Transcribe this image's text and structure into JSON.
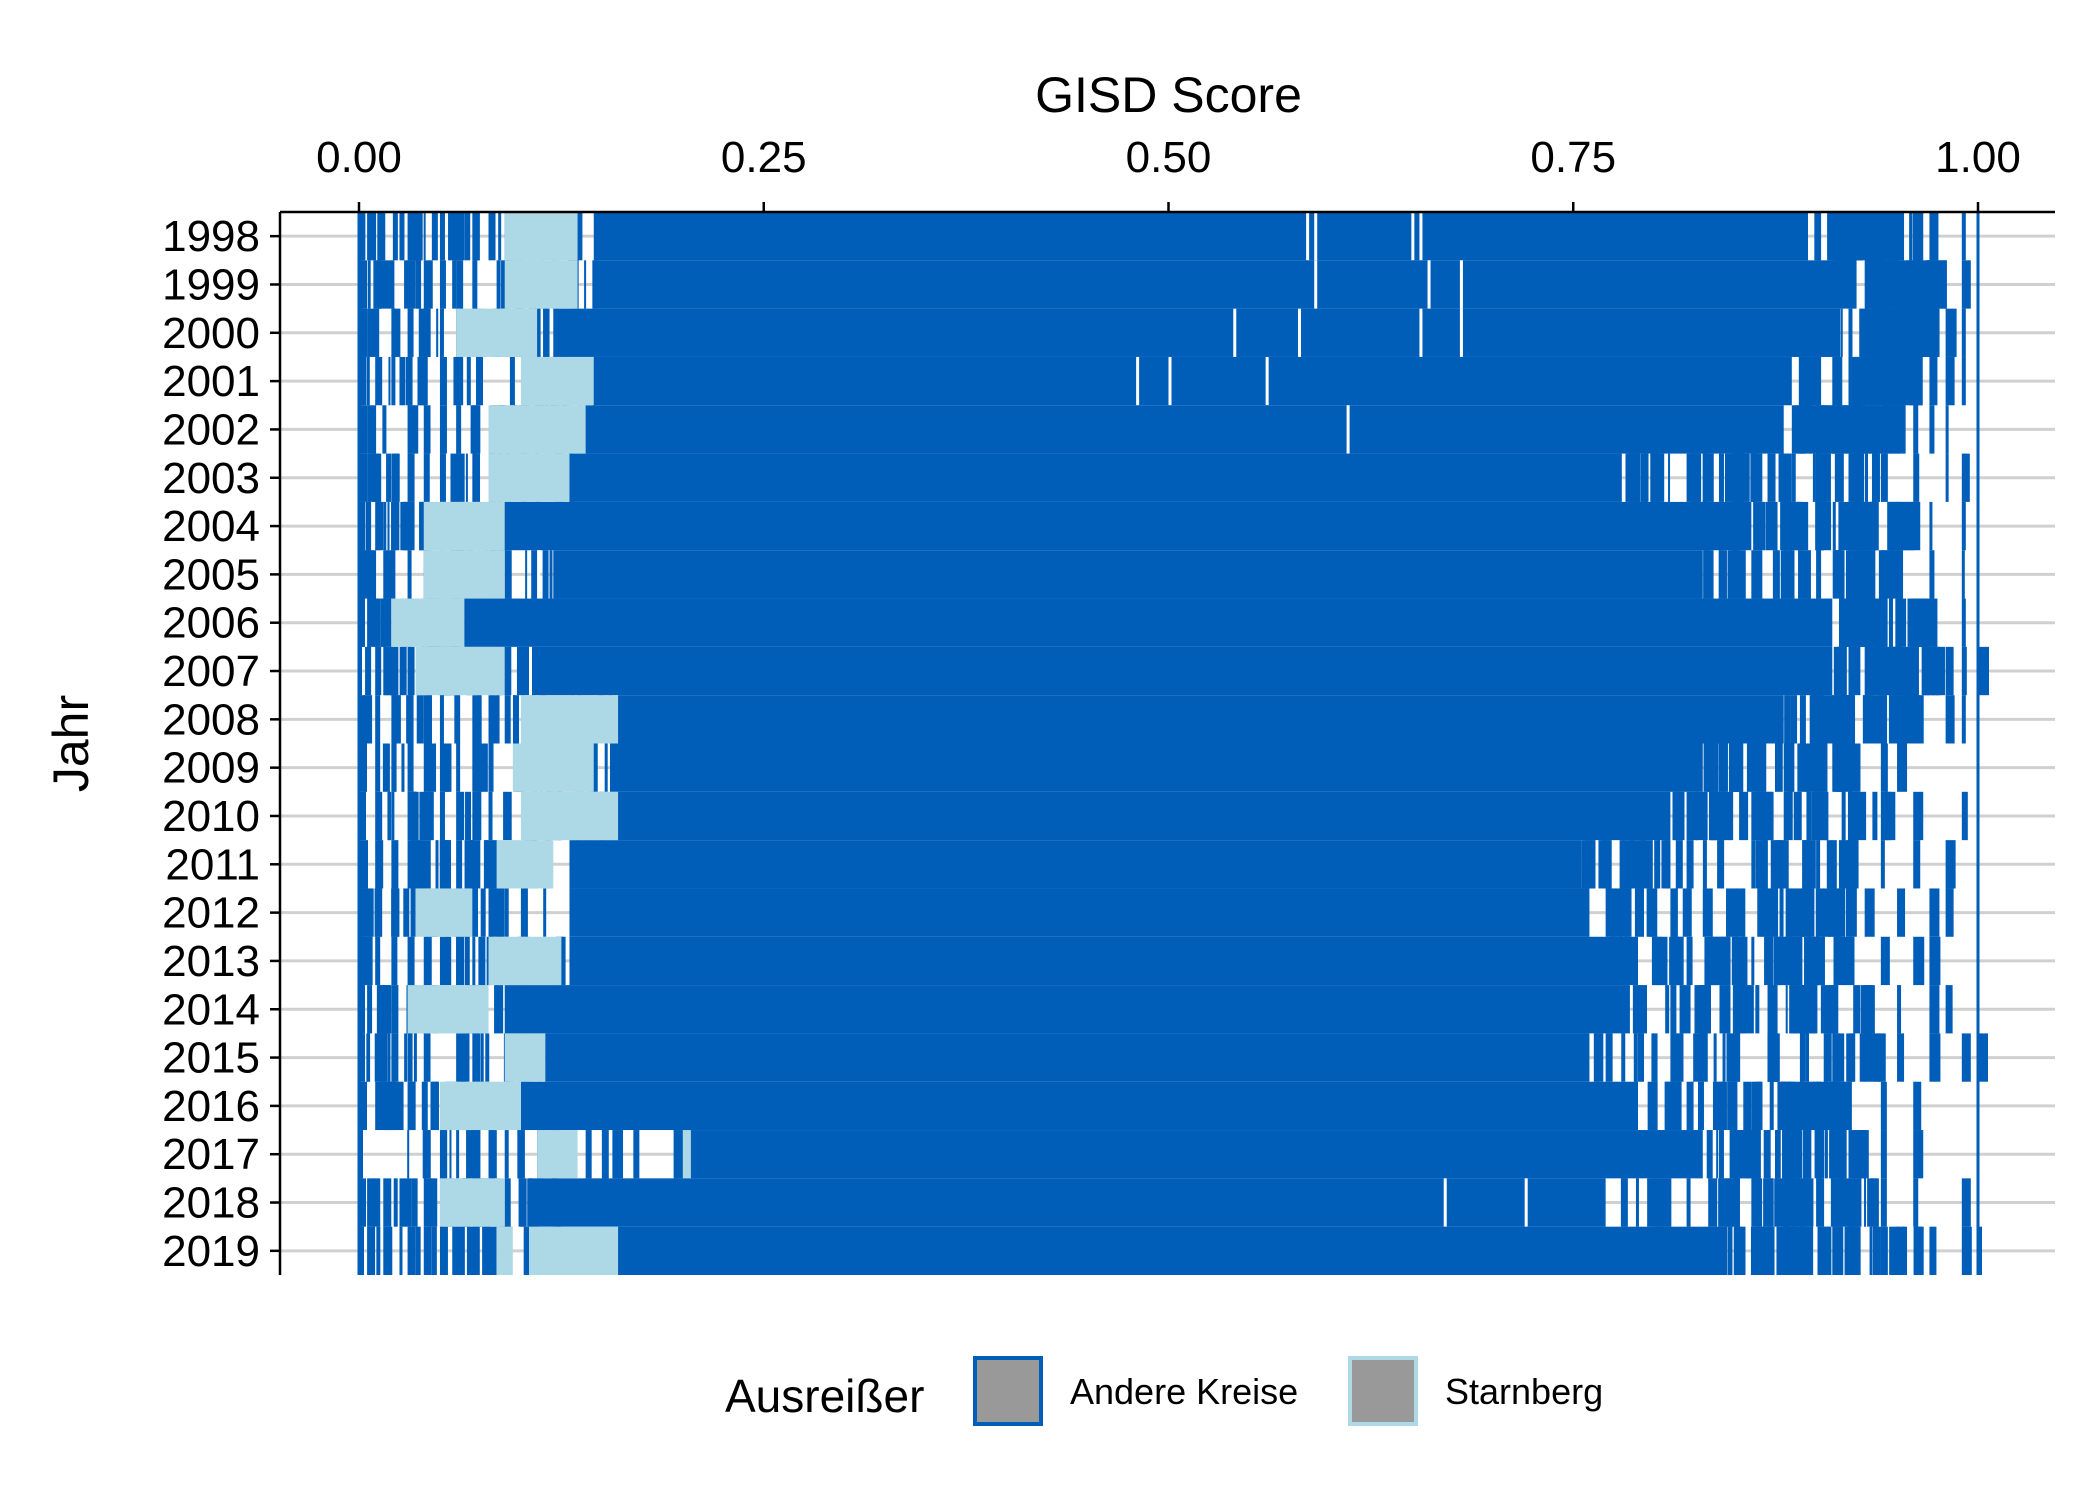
{
  "chart_data": {
    "type": "bar",
    "description_of_marks": "vertical segment lines per district GISD score",
    "xlabel": "GISD Score",
    "ylabel": "Jahr",
    "xlim": [
      -0.04,
      1.04
    ],
    "xticks": [
      "0.00",
      "0.25",
      "0.50",
      "0.75",
      "1.00"
    ],
    "xtick_values": [
      0,
      0.25,
      0.5,
      0.75,
      1.0
    ],
    "categories": [
      "1998",
      "1999",
      "2000",
      "2001",
      "2002",
      "2003",
      "2004",
      "2005",
      "2006",
      "2007",
      "2008",
      "2009",
      "2010",
      "2011",
      "2012",
      "2013",
      "2014",
      "2015",
      "2016",
      "2017",
      "2018",
      "2019"
    ],
    "grid": "horizontal",
    "legend": {
      "title": "Ausreißer",
      "position": "bottom",
      "entries": [
        {
          "label": "Andere Kreise",
          "color": "#005eb8"
        },
        {
          "label": "Starnberg",
          "color": "#add8e6"
        }
      ]
    },
    "series": [
      {
        "name": "Andere Kreise",
        "color": "#005eb8",
        "rows": [
          {
            "year": "1998",
            "dense_range": [
              0.145,
              0.895
            ],
            "left_scatter": [
              0.0,
              0.005,
              0.025,
              0.03,
              0.035,
              0.045,
              0.05,
              0.055,
              0.06,
              0.065,
              0.07,
              0.08,
              0.09
            ],
            "right_scatter": [
              0.9,
              0.91,
              0.92,
              0.93,
              0.935,
              0.945,
              0.95,
              0.96,
              0.97,
              0.99
            ],
            "inner_gaps": [
              0.585,
              0.59,
              0.65,
              0.655
            ]
          },
          {
            "year": "1999",
            "dense_range": [
              0.145,
              0.925
            ],
            "left_scatter": [
              0.0,
              0.01,
              0.015,
              0.02,
              0.03,
              0.035,
              0.04,
              0.05,
              0.06,
              0.07,
              0.085
            ],
            "right_scatter": [
              0.93,
              0.94,
              0.95,
              0.96,
              0.97,
              0.99
            ],
            "inner_gaps": [
              0.59,
              0.66,
              0.68
            ]
          },
          {
            "year": "2000",
            "dense_range": [
              0.12,
              0.915
            ],
            "left_scatter": [
              0.0,
              0.005,
              0.01,
              0.02,
              0.03,
              0.04,
              0.05,
              0.06
            ],
            "right_scatter": [
              0.92,
              0.93,
              0.94,
              0.95,
              0.96,
              0.97,
              0.98,
              0.99
            ],
            "inner_gaps": [
              0.54,
              0.58,
              0.655,
              0.68
            ]
          },
          {
            "year": "2001",
            "dense_range": [
              0.145,
              0.885
            ],
            "left_scatter": [
              0.0,
              0.01,
              0.02,
              0.025,
              0.03,
              0.04,
              0.05,
              0.06
            ],
            "right_scatter": [
              0.89,
              0.9,
              0.91,
              0.92,
              0.93,
              0.95,
              0.96,
              0.97,
              0.98,
              0.99
            ],
            "inner_gaps": [
              0.48,
              0.5,
              0.56
            ]
          },
          {
            "year": "2002",
            "dense_range": [
              0.14,
              0.88
            ],
            "left_scatter": [
              0.0,
              0.005,
              0.03,
              0.04,
              0.05,
              0.06,
              0.07
            ],
            "right_scatter": [
              0.885,
              0.89,
              0.9,
              0.91,
              0.92,
              0.93,
              0.94,
              0.95,
              0.96,
              0.97,
              0.98
            ],
            "inner_gaps": [
              0.61
            ]
          },
          {
            "year": "2003",
            "dense_range": [
              0.13,
              0.78
            ],
            "left_scatter": [
              0.0,
              0.005,
              0.01,
              0.02,
              0.03,
              0.04,
              0.05,
              0.07
            ],
            "right_scatter": [
              0.8,
              0.82,
              0.83,
              0.84,
              0.85,
              0.86,
              0.87,
              0.88,
              0.9,
              0.92,
              0.94,
              0.96,
              0.98,
              0.99
            ],
            "inner_gaps": []
          },
          {
            "year": "2004",
            "dense_range": [
              0.09,
              0.86
            ],
            "left_scatter": [
              0.0,
              0.005,
              0.01,
              0.015,
              0.02,
              0.03
            ],
            "right_scatter": [
              0.87,
              0.88,
              0.9,
              0.92,
              0.93,
              0.95,
              0.96,
              0.97,
              0.99
            ],
            "inner_gaps": []
          },
          {
            "year": "2005",
            "dense_range": [
              0.12,
              0.83
            ],
            "left_scatter": [
              0.0,
              0.005,
              0.015,
              0.02,
              0.03,
              0.04,
              0.06,
              0.09
            ],
            "right_scatter": [
              0.84,
              0.86,
              0.88,
              0.9,
              0.92,
              0.94,
              0.95,
              0.97,
              0.99
            ],
            "inner_gaps": [
              0.11
            ]
          },
          {
            "year": "2006",
            "dense_range": [
              0.065,
              0.91
            ],
            "left_scatter": [
              0.0,
              0.005,
              0.01,
              0.015
            ],
            "right_scatter": [
              0.92,
              0.93,
              0.94,
              0.95,
              0.97,
              0.99
            ],
            "inner_gaps": []
          },
          {
            "year": "2007",
            "dense_range": [
              0.1,
              0.91
            ],
            "left_scatter": [
              0.0,
              0.005,
              0.01,
              0.015,
              0.02,
              0.03
            ],
            "right_scatter": [
              0.92,
              0.93,
              0.94,
              0.95,
              0.96,
              0.97,
              0.98,
              0.99,
              1.0
            ],
            "inner_gaps": [
              0.105
            ]
          },
          {
            "year": "2008",
            "dense_range": [
              0.16,
              0.88
            ],
            "left_scatter": [
              0.0,
              0.005,
              0.01,
              0.02,
              0.03,
              0.04,
              0.05,
              0.06,
              0.07,
              0.08,
              0.09
            ],
            "right_scatter": [
              0.89,
              0.9,
              0.91,
              0.92,
              0.93,
              0.95,
              0.96,
              0.98,
              0.99
            ],
            "inner_gaps": []
          },
          {
            "year": "2009",
            "dense_range": [
              0.155,
              0.83
            ],
            "left_scatter": [
              0.0,
              0.01,
              0.02,
              0.03,
              0.04,
              0.05,
              0.06,
              0.07,
              0.08
            ],
            "right_scatter": [
              0.84,
              0.86,
              0.88,
              0.9,
              0.91,
              0.92,
              0.94,
              0.95
            ],
            "inner_gaps": []
          },
          {
            "year": "2010",
            "dense_range": [
              0.16,
              0.81
            ],
            "left_scatter": [
              0.0,
              0.01,
              0.02,
              0.03,
              0.04,
              0.05,
              0.06,
              0.07,
              0.08,
              0.09
            ],
            "right_scatter": [
              0.82,
              0.84,
              0.86,
              0.88,
              0.9,
              0.92,
              0.94,
              0.96,
              0.99
            ],
            "inner_gaps": []
          },
          {
            "year": "2011",
            "dense_range": [
              0.13,
              0.755
            ],
            "left_scatter": [
              0.0,
              0.01,
              0.02,
              0.03,
              0.04,
              0.05,
              0.06,
              0.07,
              0.08
            ],
            "right_scatter": [
              0.76,
              0.78,
              0.8,
              0.82,
              0.84,
              0.86,
              0.88,
              0.9,
              0.92,
              0.94,
              0.96,
              0.98
            ],
            "inner_gaps": []
          },
          {
            "year": "2012",
            "dense_range": [
              0.13,
              0.76
            ],
            "left_scatter": [
              0.0,
              0.005,
              0.01,
              0.02,
              0.08,
              0.09,
              0.1
            ],
            "right_scatter": [
              0.77,
              0.79,
              0.81,
              0.83,
              0.85,
              0.87,
              0.89,
              0.91,
              0.93,
              0.95,
              0.97,
              0.98
            ],
            "inner_gaps": []
          },
          {
            "year": "2013",
            "dense_range": [
              0.13,
              0.79
            ],
            "left_scatter": [
              0.0,
              0.01,
              0.02,
              0.03,
              0.04,
              0.05,
              0.06,
              0.07
            ],
            "right_scatter": [
              0.8,
              0.82,
              0.84,
              0.86,
              0.88,
              0.9,
              0.92,
              0.94,
              0.96,
              0.97
            ],
            "inner_gaps": []
          },
          {
            "year": "2014",
            "dense_range": [
              0.09,
              0.785
            ],
            "left_scatter": [
              0.0,
              0.005,
              0.015,
              0.02
            ],
            "right_scatter": [
              0.79,
              0.81,
              0.83,
              0.85,
              0.87,
              0.89,
              0.91,
              0.93,
              0.95,
              0.97,
              0.98
            ],
            "inner_gaps": []
          },
          {
            "year": "2015",
            "dense_range": [
              0.115,
              0.76
            ],
            "left_scatter": [
              0.0,
              0.005,
              0.015,
              0.02,
              0.03,
              0.04,
              0.06,
              0.07,
              0.09
            ],
            "right_scatter": [
              0.77,
              0.79,
              0.81,
              0.83,
              0.85,
              0.87,
              0.89,
              0.91,
              0.93,
              0.95,
              0.97,
              0.99,
              1.0
            ],
            "inner_gaps": []
          },
          {
            "year": "2016",
            "dense_range": [
              0.1,
              0.79
            ],
            "left_scatter": [
              0.0,
              0.01,
              0.02,
              0.03,
              0.04,
              0.045
            ],
            "right_scatter": [
              0.8,
              0.82,
              0.84,
              0.86,
              0.88,
              0.9,
              0.92,
              0.94,
              0.96
            ],
            "inner_gaps": []
          },
          {
            "year": "2017",
            "dense_range": [
              0.195,
              0.83
            ],
            "left_scatter": [
              0.0,
              0.04,
              0.05,
              0.06,
              0.07,
              0.08,
              0.09,
              0.1,
              0.11,
              0.12,
              0.14,
              0.15,
              0.16
            ],
            "right_scatter": [
              0.84,
              0.86,
              0.88,
              0.9,
              0.92,
              0.94,
              0.96
            ],
            "inner_gaps": []
          },
          {
            "year": "2018",
            "dense_range": [
              0.105,
              0.77
            ],
            "left_scatter": [
              0.0,
              0.005,
              0.015,
              0.025,
              0.03,
              0.04,
              0.05,
              0.07,
              0.09
            ],
            "right_scatter": [
              0.78,
              0.8,
              0.82,
              0.84,
              0.86,
              0.88,
              0.9,
              0.92,
              0.94,
              0.96,
              0.99
            ],
            "inner_gaps": [
              0.67,
              0.72
            ]
          },
          {
            "year": "2019",
            "dense_range": [
              0.16,
              0.845
            ],
            "left_scatter": [
              0.0,
              0.005,
              0.015,
              0.025,
              0.03,
              0.035,
              0.04,
              0.045,
              0.05,
              0.06,
              0.07,
              0.08,
              0.09
            ],
            "right_scatter": [
              0.85,
              0.87,
              0.89,
              0.91,
              0.92,
              0.94,
              0.95,
              0.97,
              0.99,
              1.0
            ],
            "inner_gaps": []
          }
        ]
      },
      {
        "name": "Starnberg",
        "color": "#add8e6",
        "rows": [
          {
            "year": "1998",
            "ranges": [
              [
                0.09,
                0.135
              ]
            ]
          },
          {
            "year": "1999",
            "ranges": [
              [
                0.09,
                0.135
              ]
            ]
          },
          {
            "year": "2000",
            "ranges": [
              [
                0.06,
                0.11
              ]
            ]
          },
          {
            "year": "2001",
            "ranges": [
              [
                0.1,
                0.145
              ]
            ]
          },
          {
            "year": "2002",
            "ranges": [
              [
                0.08,
                0.14
              ]
            ]
          },
          {
            "year": "2003",
            "ranges": [
              [
                0.08,
                0.13
              ]
            ]
          },
          {
            "year": "2004",
            "ranges": [
              [
                0.04,
                0.09
              ]
            ]
          },
          {
            "year": "2005",
            "ranges": [
              [
                0.04,
                0.09
              ]
            ]
          },
          {
            "year": "2006",
            "ranges": [
              [
                0.02,
                0.065
              ]
            ]
          },
          {
            "year": "2007",
            "ranges": [
              [
                0.035,
                0.09
              ]
            ]
          },
          {
            "year": "2008",
            "ranges": [
              [
                0.1,
                0.16
              ]
            ]
          },
          {
            "year": "2009",
            "ranges": [
              [
                0.095,
                0.145
              ]
            ]
          },
          {
            "year": "2010",
            "ranges": [
              [
                0.1,
                0.16
              ]
            ]
          },
          {
            "year": "2011",
            "ranges": [
              [
                0.085,
                0.12
              ]
            ]
          },
          {
            "year": "2012",
            "ranges": [
              [
                0.035,
                0.07
              ]
            ]
          },
          {
            "year": "2013",
            "ranges": [
              [
                0.08,
                0.125
              ]
            ]
          },
          {
            "year": "2014",
            "ranges": [
              [
                0.03,
                0.08
              ]
            ]
          },
          {
            "year": "2015",
            "ranges": [
              [
                0.09,
                0.115
              ]
            ]
          },
          {
            "year": "2016",
            "ranges": [
              [
                0.05,
                0.1
              ]
            ]
          },
          {
            "year": "2017",
            "ranges": [
              [
                0.11,
                0.135
              ],
              [
                0.2,
                0.205
              ]
            ]
          },
          {
            "year": "2018",
            "ranges": [
              [
                0.05,
                0.09
              ]
            ]
          },
          {
            "year": "2019",
            "ranges": [
              [
                0.105,
                0.16
              ],
              [
                0.085,
                0.095
              ]
            ]
          }
        ]
      }
    ]
  }
}
